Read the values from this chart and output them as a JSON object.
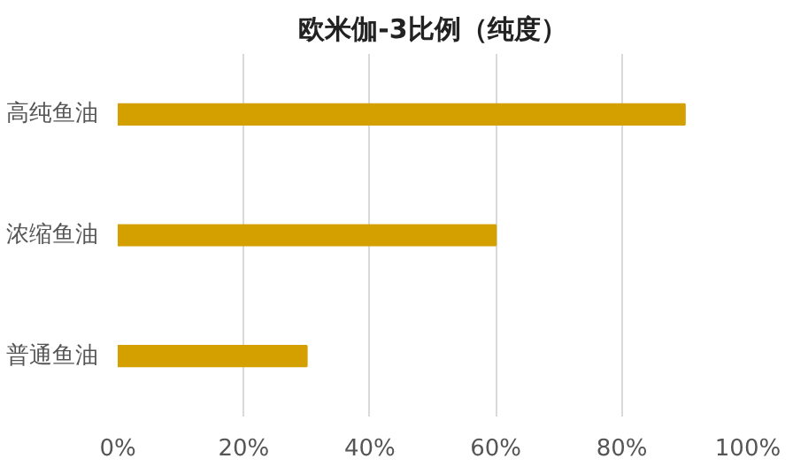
{
  "chart_data": {
    "type": "bar",
    "orientation": "horizontal",
    "title": "欧米伽-3比例（纯度）",
    "categories": [
      "高纯鱼油",
      "浓缩鱼油",
      "普通鱼油"
    ],
    "values": [
      90,
      60,
      30
    ],
    "color": "#d4a000",
    "xlim": [
      0,
      100
    ],
    "xticks": [
      {
        "value": 0,
        "label": "0%"
      },
      {
        "value": 20,
        "label": "20%"
      },
      {
        "value": 40,
        "label": "40%"
      },
      {
        "value": 60,
        "label": "60%"
      },
      {
        "value": 80,
        "label": "80%"
      },
      {
        "value": 100,
        "label": "100%"
      }
    ],
    "grid": "x"
  }
}
